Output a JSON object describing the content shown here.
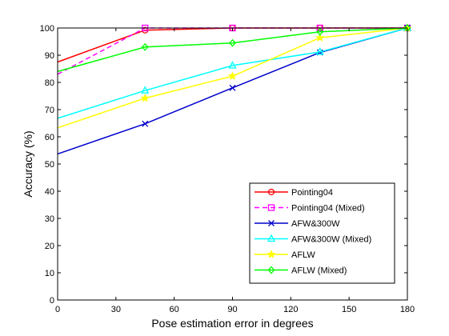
{
  "chart_data": {
    "type": "line",
    "title": "",
    "xlabel": "Pose estimation error in degrees",
    "ylabel": "Accuracy (%)",
    "xlim": [
      0,
      180
    ],
    "ylim": [
      0,
      100
    ],
    "xticks": [
      0,
      30,
      60,
      90,
      120,
      150,
      180
    ],
    "yticks": [
      0,
      10,
      20,
      30,
      40,
      50,
      60,
      70,
      80,
      90,
      100
    ],
    "grid": false,
    "legend_position": "bottom-right",
    "x": [
      0,
      45,
      90,
      135,
      180
    ],
    "series": [
      {
        "name": "Pointing04",
        "color": "#ff0000",
        "dash": "solid",
        "marker": "circle",
        "values": [
          87.5,
          99.2,
          100,
          100,
          100
        ]
      },
      {
        "name": "Pointing04 (Mixed)",
        "color": "#ff00ff",
        "dash": "dashed",
        "marker": "square",
        "values": [
          83,
          100,
          100,
          100,
          100
        ]
      },
      {
        "name": "AFW&300W",
        "color": "#0000cc",
        "dash": "solid",
        "marker": "x",
        "values": [
          53.7,
          64.8,
          78,
          91,
          100
        ]
      },
      {
        "name": "AFW&300W (Mixed)",
        "color": "#00ffff",
        "dash": "solid",
        "marker": "triangle",
        "values": [
          66.8,
          77,
          86.2,
          91.2,
          100
        ]
      },
      {
        "name": "AFLW",
        "color": "#ffff00",
        "dash": "solid",
        "marker": "star",
        "values": [
          63.3,
          74.2,
          82.3,
          96.4,
          100
        ]
      },
      {
        "name": "AFLW (Mixed)",
        "color": "#00ff00",
        "dash": "solid",
        "marker": "diamond",
        "values": [
          84,
          93,
          94.5,
          98.6,
          100
        ]
      }
    ]
  }
}
